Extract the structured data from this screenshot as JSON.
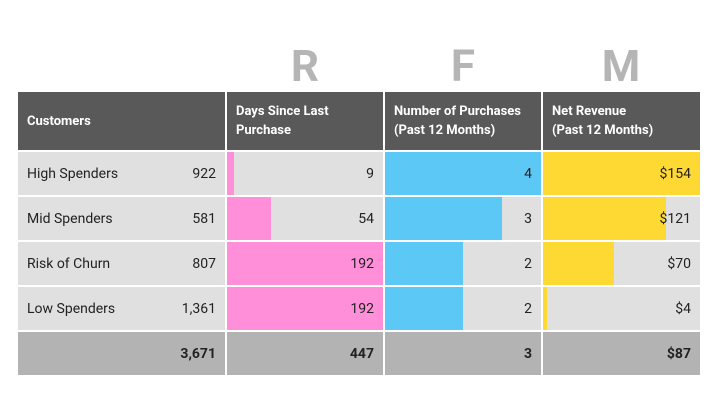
{
  "letters": [
    "R",
    "F",
    "M"
  ],
  "table": {
    "headers": [
      [
        "Customers"
      ],
      [
        "Days Since Last",
        "Purchase"
      ],
      [
        "Number of Purchases",
        "(Past 12 Months)"
      ],
      [
        "Net Revenue",
        "(Past 12 Months)"
      ]
    ],
    "rows": [
      {
        "segment": "High Spenders",
        "customers": 922,
        "recency": 9,
        "frequency": 4,
        "revenue": {
          "value": 154,
          "label": "$154"
        }
      },
      {
        "segment": "Mid Spenders",
        "customers": 581,
        "recency": 54,
        "frequency": 3,
        "revenue": {
          "value": 121,
          "label": "$121"
        }
      },
      {
        "segment": "Risk of Churn",
        "customers": 807,
        "recency": 192,
        "frequency": 2,
        "revenue": {
          "value": 70,
          "label": "$70"
        }
      },
      {
        "segment": "Low Spenders",
        "customers": {
          "value": 1361,
          "label": "1,361"
        },
        "recency": 192,
        "frequency": 2,
        "revenue": {
          "value": 4,
          "label": "$4"
        }
      }
    ],
    "total": {
      "customers": {
        "value": 3671,
        "label": "3,671"
      },
      "recency": 447,
      "frequency": 3,
      "revenue": {
        "value": 87,
        "label": "$87"
      }
    },
    "colors": {
      "recency": "#ff8fd9",
      "frequency": "#5bc8f6",
      "revenue": "#ffd933"
    }
  }
}
